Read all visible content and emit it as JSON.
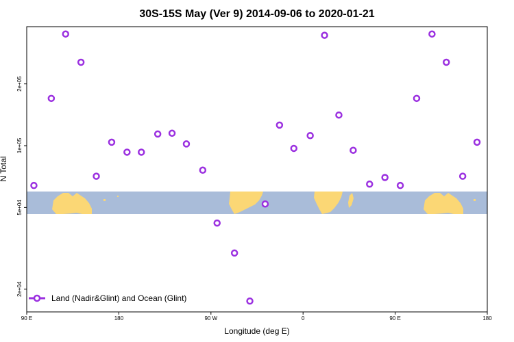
{
  "chart_data": {
    "type": "scatter",
    "title": "30S-15S May (Ver 9)   2014-09-06 to 2020-01-21",
    "xlabel": "Longitude (deg E)",
    "ylabel": "N Total",
    "x_axis": {
      "range": [
        90,
        540
      ],
      "scale": "linear",
      "ticks": [
        {
          "value": 90,
          "label": "90 E"
        },
        {
          "value": 180,
          "label": "180"
        },
        {
          "value": 270,
          "label": "90 W"
        },
        {
          "value": 360,
          "label": "0"
        },
        {
          "value": 450,
          "label": "90 E"
        },
        {
          "value": 540,
          "label": "180"
        }
      ]
    },
    "y_axis": {
      "range": [
        15500,
        380000
      ],
      "scale": "log",
      "ticks": [
        {
          "value": 20000,
          "label": "2e+04"
        },
        {
          "value": 50000,
          "label": "5e+04"
        },
        {
          "value": 100000,
          "label": "1e+05"
        },
        {
          "value": 200000,
          "label": "2e+05"
        }
      ]
    },
    "legend": {
      "position": "bottom-left",
      "entries": [
        "Land (Nadir&Glint) and Ocean (Glint)"
      ]
    },
    "series": [
      {
        "name": "Land (Nadir&Glint) and Ocean (Glint)",
        "color": "#9b30e0",
        "marker": "open-circle",
        "points": [
          {
            "x": 97,
            "y": 64000
          },
          {
            "x": 114,
            "y": 170000
          },
          {
            "x": 128,
            "y": 350000
          },
          {
            "x": 143,
            "y": 255000
          },
          {
            "x": 158,
            "y": 71000
          },
          {
            "x": 173,
            "y": 104000
          },
          {
            "x": 188,
            "y": 93000
          },
          {
            "x": 202,
            "y": 93000
          },
          {
            "x": 218,
            "y": 114000
          },
          {
            "x": 232,
            "y": 115000
          },
          {
            "x": 246,
            "y": 102000
          },
          {
            "x": 262,
            "y": 76000
          },
          {
            "x": 276,
            "y": 42000
          },
          {
            "x": 293,
            "y": 30000
          },
          {
            "x": 308,
            "y": 17500
          },
          {
            "x": 323,
            "y": 52000
          },
          {
            "x": 337,
            "y": 126000
          },
          {
            "x": 351,
            "y": 97000
          },
          {
            "x": 367,
            "y": 112000
          },
          {
            "x": 381,
            "y": 345000
          },
          {
            "x": 395,
            "y": 141000
          },
          {
            "x": 409,
            "y": 95000
          },
          {
            "x": 425,
            "y": 65000
          },
          {
            "x": 440,
            "y": 70000
          },
          {
            "x": 455,
            "y": 64000
          },
          {
            "x": 471,
            "y": 170000
          },
          {
            "x": 486,
            "y": 350000
          },
          {
            "x": 500,
            "y": 255000
          },
          {
            "x": 516,
            "y": 71000
          },
          {
            "x": 530,
            "y": 104000
          }
        ]
      }
    ],
    "background_map": "world coastline strip (land yellow, ocean blue) for 30S-15S latitude band"
  },
  "colors": {
    "marker": "#9b30e0",
    "ocean": "#a9bcd9",
    "land": "#fbd775",
    "axis": "#000000"
  }
}
